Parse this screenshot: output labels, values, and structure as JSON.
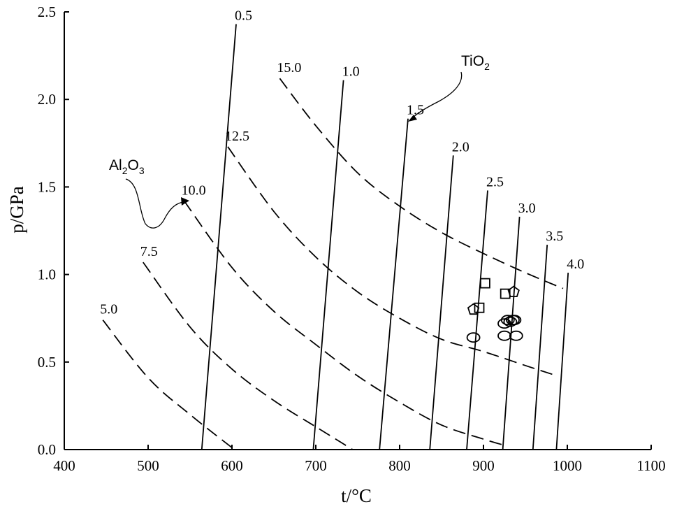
{
  "chart_data": {
    "type": "line",
    "xlabel": "t/°C",
    "ylabel": "p/GPa",
    "xlim": [
      400,
      1100
    ],
    "ylim": [
      0.0,
      2.5
    ],
    "x_ticks": [
      "400",
      "500",
      "600",
      "700",
      "800",
      "900",
      "1000",
      "1100"
    ],
    "y_ticks": [
      "0.0",
      "0.5",
      "1.0",
      "1.5",
      "2.0",
      "2.5"
    ],
    "grid": false,
    "tio2_isopleths": [
      {
        "label": "0.5",
        "points": [
          [
            564,
            0.0
          ],
          [
            605,
            2.43
          ]
        ]
      },
      {
        "label": "1.0",
        "points": [
          [
            697,
            0.0
          ],
          [
            733,
            2.11
          ]
        ]
      },
      {
        "label": "1.5",
        "points": [
          [
            776,
            0.0
          ],
          [
            810,
            1.89
          ]
        ]
      },
      {
        "label": "2.0",
        "points": [
          [
            836,
            0.0
          ],
          [
            864,
            1.68
          ]
        ]
      },
      {
        "label": "2.5",
        "points": [
          [
            880,
            0.0
          ],
          [
            905,
            1.48
          ]
        ]
      },
      {
        "label": "3.0",
        "points": [
          [
            923,
            0.0
          ],
          [
            943,
            1.33
          ]
        ]
      },
      {
        "label": "3.5",
        "points": [
          [
            959,
            0.0
          ],
          [
            976,
            1.17
          ]
        ]
      },
      {
        "label": "4.0",
        "points": [
          [
            987,
            0.0
          ],
          [
            1001,
            1.01
          ]
        ]
      }
    ],
    "al2o3_isopleths": [
      {
        "label": "5.0",
        "points": [
          [
            446,
            0.74
          ],
          [
            500,
            0.41
          ],
          [
            550,
            0.2
          ],
          [
            603,
            0.0
          ]
        ]
      },
      {
        "label": "7.5",
        "points": [
          [
            494,
            1.07
          ],
          [
            550,
            0.7
          ],
          [
            600,
            0.46
          ],
          [
            650,
            0.28
          ],
          [
            700,
            0.13
          ],
          [
            744,
            0.0
          ]
        ]
      },
      {
        "label": "10.0",
        "points": [
          [
            543,
            1.42
          ],
          [
            600,
            1.04
          ],
          [
            650,
            0.79
          ],
          [
            700,
            0.6
          ],
          [
            750,
            0.42
          ],
          [
            800,
            0.27
          ],
          [
            850,
            0.14
          ],
          [
            900,
            0.06
          ],
          [
            928,
            0.02
          ]
        ]
      },
      {
        "label": "12.5",
        "points": [
          [
            595,
            1.73
          ],
          [
            650,
            1.36
          ],
          [
            700,
            1.1
          ],
          [
            750,
            0.9
          ],
          [
            800,
            0.75
          ],
          [
            850,
            0.63
          ],
          [
            900,
            0.56
          ],
          [
            950,
            0.48
          ],
          [
            982,
            0.43
          ]
        ]
      },
      {
        "label": "15.0",
        "points": [
          [
            657,
            2.12
          ],
          [
            700,
            1.85
          ],
          [
            750,
            1.58
          ],
          [
            800,
            1.39
          ],
          [
            850,
            1.24
          ],
          [
            900,
            1.12
          ],
          [
            950,
            1.01
          ],
          [
            995,
            0.92
          ]
        ]
      }
    ],
    "annotations": [
      {
        "text": "TiO",
        "subscript": "2",
        "points_to": "1.5"
      },
      {
        "text": "Al",
        "subscript_1": "2",
        "middle": "O",
        "subscript_2": "3",
        "points_to": "10.0"
      }
    ],
    "samples": {
      "squares": [
        [
          902,
          0.95
        ],
        [
          895,
          0.81
        ],
        [
          926,
          0.89
        ]
      ],
      "pentagons": [
        [
          888,
          0.8
        ],
        [
          936,
          0.9
        ]
      ],
      "ellipses": [
        [
          888,
          0.64
        ],
        [
          925,
          0.72
        ],
        [
          932,
          0.73
        ],
        [
          929,
          0.74
        ],
        [
          935,
          0.74
        ],
        [
          937,
          0.74
        ],
        [
          925,
          0.65
        ],
        [
          939,
          0.65
        ]
      ]
    }
  }
}
